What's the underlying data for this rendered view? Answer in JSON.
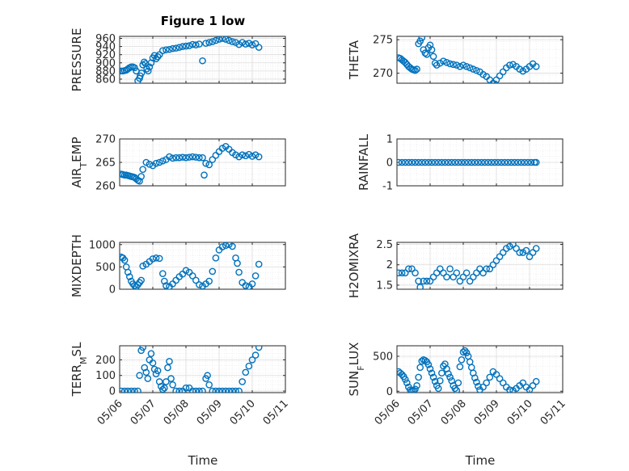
{
  "figure": {
    "title": "Figure 1 low",
    "xlabel": "Time"
  },
  "colors": {
    "marker": "#0072BD",
    "axes": "#262626",
    "grid": "#dcdcdc"
  },
  "chart_data": [
    {
      "type": "scatter",
      "ylabel": "PRESSURE",
      "title": "Figure 1 low",
      "ylim": [
        850,
        965
      ],
      "yticks": [
        860,
        880,
        900,
        920,
        940,
        960
      ],
      "xlim": [
        0,
        5
      ],
      "xticks": [
        "05/06",
        "05/07",
        "05/08",
        "05/09",
        "05/10",
        "05/11"
      ],
      "xtick_labels_shown": false,
      "x": [
        0.05,
        0.1,
        0.15,
        0.2,
        0.25,
        0.3,
        0.35,
        0.4,
        0.45,
        0.5,
        0.55,
        0.6,
        0.62,
        0.66,
        0.7,
        0.74,
        0.78,
        0.82,
        0.86,
        0.9,
        0.95,
        1.0,
        1.05,
        1.1,
        1.15,
        1.2,
        1.3,
        1.4,
        1.5,
        1.6,
        1.7,
        1.8,
        1.9,
        2.0,
        2.1,
        2.2,
        2.3,
        2.4,
        2.5,
        2.6,
        2.7,
        2.8,
        2.9,
        3.0,
        3.1,
        3.2,
        3.3,
        3.4,
        3.5,
        3.6,
        3.7,
        3.8,
        3.9,
        4.0,
        4.1,
        4.2
      ],
      "y": [
        880,
        880,
        881,
        882,
        885,
        888,
        890,
        890,
        888,
        880,
        856,
        862,
        868,
        875,
        895,
        902,
        898,
        885,
        880,
        890,
        900,
        912,
        918,
        910,
        915,
        920,
        930,
        932,
        933,
        935,
        936,
        938,
        940,
        941,
        942,
        945,
        944,
        946,
        905,
        948,
        950,
        952,
        955,
        958,
        960,
        958,
        955,
        952,
        950,
        945,
        950,
        946,
        948,
        944,
        947,
        938
      ]
    },
    {
      "type": "scatter",
      "ylabel": "THETA",
      "ylim": [
        268.5,
        275.5
      ],
      "yticks": [
        270,
        275
      ],
      "xlim": [
        0,
        5
      ],
      "xticks": [
        "05/06",
        "05/07",
        "05/08",
        "05/09",
        "05/10",
        "05/11"
      ],
      "xtick_labels_shown": false,
      "x": [
        0.05,
        0.1,
        0.15,
        0.2,
        0.25,
        0.3,
        0.35,
        0.4,
        0.45,
        0.5,
        0.55,
        0.6,
        0.65,
        0.7,
        0.75,
        0.8,
        0.85,
        0.9,
        0.95,
        1.0,
        1.05,
        1.1,
        1.15,
        1.2,
        1.3,
        1.4,
        1.5,
        1.6,
        1.7,
        1.8,
        1.9,
        2.0,
        2.1,
        2.2,
        2.3,
        2.4,
        2.5,
        2.6,
        2.7,
        2.8,
        2.9,
        3.0,
        3.1,
        3.2,
        3.3,
        3.4,
        3.5,
        3.6,
        3.7,
        3.8,
        3.9,
        4.0,
        4.1,
        4.2
      ],
      "y": [
        272.3,
        272.2,
        272.0,
        271.8,
        271.6,
        271.3,
        271.0,
        270.8,
        270.6,
        270.5,
        270.4,
        270.6,
        274.4,
        274.8,
        275.3,
        273.5,
        273.0,
        272.8,
        273.8,
        274.2,
        273.5,
        272.5,
        271.5,
        271.2,
        271.5,
        271.8,
        271.6,
        271.4,
        271.3,
        271.2,
        271.0,
        271.2,
        271.0,
        270.8,
        270.6,
        270.4,
        270.2,
        269.8,
        269.5,
        269.0,
        268.5,
        269.0,
        269.6,
        270.2,
        270.8,
        271.2,
        271.3,
        271.0,
        270.6,
        270.3,
        270.6,
        271.0,
        271.4,
        271.0
      ]
    },
    {
      "type": "scatter",
      "ylabel": "AIR_TEMP",
      "ylabel_display": {
        "base": "AIR",
        "sub": "T",
        "rest": "EMP"
      },
      "ylim": [
        260,
        270
      ],
      "yticks": [
        260,
        265,
        270
      ],
      "xlim": [
        0,
        5
      ],
      "xticks": [
        "05/06",
        "05/07",
        "05/08",
        "05/09",
        "05/10",
        "05/11"
      ],
      "xtick_labels_shown": false,
      "x": [
        0.05,
        0.1,
        0.15,
        0.2,
        0.25,
        0.3,
        0.35,
        0.4,
        0.45,
        0.5,
        0.55,
        0.6,
        0.65,
        0.7,
        0.8,
        0.9,
        1.0,
        1.1,
        1.2,
        1.3,
        1.4,
        1.5,
        1.6,
        1.7,
        1.8,
        1.9,
        2.0,
        2.1,
        2.2,
        2.3,
        2.4,
        2.5,
        2.55,
        2.6,
        2.7,
        2.8,
        2.9,
        3.0,
        3.1,
        3.2,
        3.3,
        3.4,
        3.5,
        3.6,
        3.7,
        3.8,
        3.9,
        4.0,
        4.1,
        4.2
      ],
      "y": [
        262.5,
        262.4,
        262.3,
        262.3,
        262.2,
        262.1,
        262.0,
        261.9,
        261.8,
        261.5,
        261.2,
        261.0,
        262.0,
        263.5,
        265.0,
        264.6,
        264.3,
        264.8,
        265.0,
        265.3,
        265.6,
        266.2,
        265.9,
        266.0,
        266.0,
        266.1,
        266.0,
        266.1,
        266.2,
        266.1,
        266.0,
        266.0,
        262.3,
        264.8,
        264.5,
        265.6,
        266.5,
        267.3,
        268.0,
        268.4,
        267.8,
        267.1,
        266.6,
        266.2,
        266.6,
        266.4,
        266.7,
        266.3,
        266.6,
        266.2
      ]
    },
    {
      "type": "scatter",
      "ylabel": "RAINFALL",
      "ylim": [
        -1,
        1
      ],
      "yticks": [
        -1,
        0,
        1
      ],
      "xlim": [
        0,
        5
      ],
      "xticks": [
        "05/06",
        "05/07",
        "05/08",
        "05/09",
        "05/10",
        "05/11"
      ],
      "xtick_labels_shown": false,
      "x": [
        0.05,
        0.15,
        0.25,
        0.35,
        0.45,
        0.55,
        0.65,
        0.75,
        0.85,
        0.95,
        1.05,
        1.15,
        1.25,
        1.35,
        1.45,
        1.55,
        1.65,
        1.75,
        1.85,
        1.95,
        2.05,
        2.15,
        2.25,
        2.35,
        2.45,
        2.55,
        2.65,
        2.75,
        2.85,
        2.95,
        3.05,
        3.15,
        3.25,
        3.35,
        3.45,
        3.55,
        3.65,
        3.75,
        3.85,
        3.95,
        4.05,
        4.15,
        4.2
      ],
      "y": [
        0,
        0,
        0,
        0,
        0,
        0,
        0,
        0,
        0,
        0,
        0,
        0,
        0,
        0,
        0,
        0,
        0,
        0,
        0,
        0,
        0,
        0,
        0,
        0,
        0,
        0,
        0,
        0,
        0,
        0,
        0,
        0,
        0,
        0,
        0,
        0,
        0,
        0,
        0,
        0,
        0,
        0,
        0
      ]
    },
    {
      "type": "scatter",
      "ylabel": "MIXDEPTH",
      "ylim": [
        0,
        1050
      ],
      "yticks": [
        0,
        500,
        1000
      ],
      "xlim": [
        0,
        5
      ],
      "xticks": [
        "05/06",
        "05/07",
        "05/08",
        "05/09",
        "05/10",
        "05/11"
      ],
      "xtick_labels_shown": false,
      "x": [
        0.05,
        0.1,
        0.15,
        0.2,
        0.25,
        0.3,
        0.35,
        0.4,
        0.45,
        0.5,
        0.55,
        0.6,
        0.65,
        0.7,
        0.8,
        0.9,
        1.0,
        1.1,
        1.2,
        1.3,
        1.35,
        1.4,
        1.5,
        1.6,
        1.7,
        1.8,
        1.9,
        2.0,
        2.1,
        2.2,
        2.3,
        2.4,
        2.5,
        2.6,
        2.7,
        2.8,
        2.9,
        3.0,
        3.1,
        3.2,
        3.3,
        3.4,
        3.5,
        3.55,
        3.6,
        3.7,
        3.8,
        3.9,
        4.0,
        4.1,
        4.2
      ],
      "y": [
        720,
        700,
        650,
        500,
        380,
        280,
        180,
        120,
        80,
        60,
        100,
        150,
        200,
        520,
        560,
        620,
        680,
        700,
        690,
        350,
        180,
        80,
        60,
        120,
        200,
        280,
        340,
        420,
        380,
        300,
        200,
        100,
        70,
        120,
        180,
        400,
        700,
        880,
        950,
        980,
        1000,
        960,
        700,
        580,
        380,
        150,
        80,
        60,
        120,
        300,
        560
      ]
    },
    {
      "type": "scatter",
      "ylabel": "H2OMIXRA",
      "ylim": [
        1.4,
        2.55
      ],
      "yticks": [
        1.5,
        2,
        2.5
      ],
      "xlim": [
        0,
        5
      ],
      "xticks": [
        "05/06",
        "05/07",
        "05/08",
        "05/09",
        "05/10",
        "05/11"
      ],
      "xtick_labels_shown": false,
      "x": [
        0.05,
        0.15,
        0.25,
        0.35,
        0.45,
        0.55,
        0.65,
        0.7,
        0.8,
        0.9,
        1.0,
        1.1,
        1.2,
        1.3,
        1.4,
        1.5,
        1.6,
        1.7,
        1.8,
        1.9,
        2.0,
        2.1,
        2.2,
        2.3,
        2.4,
        2.5,
        2.6,
        2.7,
        2.8,
        2.9,
        3.0,
        3.1,
        3.2,
        3.3,
        3.4,
        3.5,
        3.6,
        3.7,
        3.8,
        3.9,
        4.0,
        4.1,
        4.2
      ],
      "y": [
        1.8,
        1.8,
        1.8,
        1.9,
        1.9,
        1.8,
        1.6,
        1.45,
        1.6,
        1.6,
        1.6,
        1.7,
        1.8,
        1.9,
        1.8,
        1.7,
        1.9,
        1.7,
        1.8,
        1.6,
        1.7,
        1.8,
        1.6,
        1.7,
        1.8,
        1.9,
        1.8,
        1.9,
        1.9,
        2.0,
        2.1,
        2.2,
        2.3,
        2.4,
        2.45,
        2.5,
        2.4,
        2.3,
        2.3,
        2.35,
        2.2,
        2.3,
        2.4
      ]
    },
    {
      "type": "scatter",
      "ylabel": "TERR_MSL",
      "ylabel_display": {
        "base": "TERR",
        "sub": "M",
        "rest": "SL"
      },
      "ylim": [
        -10,
        290
      ],
      "yticks": [
        0,
        100,
        200
      ],
      "xlim": [
        0,
        5
      ],
      "xticks": [
        "05/06",
        "05/07",
        "05/08",
        "05/09",
        "05/10",
        "05/11"
      ],
      "xtick_labels_shown": true,
      "x": [
        0.05,
        0.15,
        0.25,
        0.35,
        0.45,
        0.55,
        0.6,
        0.65,
        0.7,
        0.75,
        0.8,
        0.85,
        0.9,
        0.95,
        1.0,
        1.05,
        1.1,
        1.15,
        1.2,
        1.25,
        1.3,
        1.35,
        1.4,
        1.45,
        1.5,
        1.55,
        1.6,
        1.7,
        1.8,
        1.9,
        2.0,
        2.1,
        2.2,
        2.3,
        2.4,
        2.5,
        2.6,
        2.65,
        2.7,
        2.8,
        2.9,
        3.0,
        3.1,
        3.2,
        3.3,
        3.4,
        3.5,
        3.6,
        3.7,
        3.8,
        3.9,
        4.0,
        4.1,
        4.2
      ],
      "y": [
        0,
        0,
        0,
        0,
        0,
        0,
        100,
        260,
        280,
        150,
        120,
        80,
        200,
        240,
        180,
        140,
        110,
        130,
        60,
        30,
        10,
        20,
        60,
        150,
        190,
        80,
        40,
        0,
        0,
        0,
        20,
        20,
        0,
        0,
        0,
        0,
        80,
        100,
        40,
        0,
        0,
        0,
        0,
        0,
        0,
        0,
        0,
        0,
        60,
        120,
        160,
        200,
        230,
        280
      ]
    },
    {
      "type": "scatter",
      "ylabel": "SUN_FLUX",
      "ylabel_display": {
        "base": "SUN",
        "sub": "F",
        "rest": "LUX"
      },
      "ylim": [
        -20,
        650
      ],
      "yticks": [
        0,
        500
      ],
      "xlim": [
        0,
        5
      ],
      "xticks": [
        "05/06",
        "05/07",
        "05/08",
        "05/09",
        "05/10",
        "05/11"
      ],
      "xtick_labels_shown": true,
      "x": [
        0.05,
        0.1,
        0.15,
        0.2,
        0.25,
        0.3,
        0.35,
        0.4,
        0.45,
        0.5,
        0.55,
        0.6,
        0.65,
        0.7,
        0.75,
        0.8,
        0.85,
        0.9,
        0.95,
        1.0,
        1.05,
        1.1,
        1.15,
        1.2,
        1.25,
        1.3,
        1.35,
        1.4,
        1.45,
        1.5,
        1.55,
        1.6,
        1.65,
        1.7,
        1.75,
        1.8,
        1.85,
        1.9,
        1.95,
        2.0,
        2.05,
        2.1,
        2.15,
        2.2,
        2.25,
        2.3,
        2.35,
        2.4,
        2.45,
        2.5,
        2.6,
        2.7,
        2.8,
        2.9,
        3.0,
        3.1,
        3.2,
        3.3,
        3.4,
        3.5,
        3.6,
        3.7,
        3.8,
        3.9,
        4.0,
        4.1,
        4.2
      ],
      "y": [
        280,
        260,
        240,
        210,
        170,
        120,
        60,
        20,
        10,
        10,
        30,
        80,
        200,
        340,
        430,
        450,
        440,
        420,
        380,
        320,
        260,
        200,
        140,
        80,
        40,
        150,
        260,
        360,
        390,
        320,
        250,
        200,
        150,
        80,
        40,
        10,
        120,
        350,
        450,
        560,
        580,
        550,
        500,
        420,
        340,
        260,
        190,
        130,
        70,
        20,
        60,
        120,
        200,
        280,
        240,
        180,
        120,
        60,
        20,
        10,
        40,
        80,
        120,
        60,
        20,
        80,
        140
      ]
    }
  ]
}
